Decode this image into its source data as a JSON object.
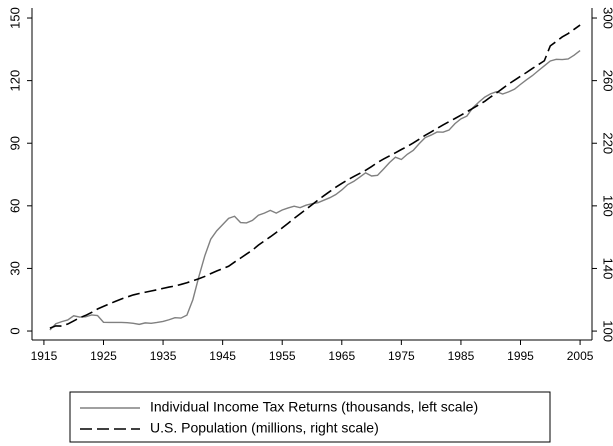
{
  "chart_data": {
    "type": "line",
    "x": [
      1916,
      1917,
      1918,
      1919,
      1920,
      1921,
      1922,
      1923,
      1924,
      1925,
      1926,
      1927,
      1928,
      1929,
      1930,
      1931,
      1932,
      1933,
      1934,
      1935,
      1936,
      1937,
      1938,
      1939,
      1940,
      1941,
      1942,
      1943,
      1944,
      1945,
      1946,
      1947,
      1948,
      1949,
      1950,
      1951,
      1952,
      1953,
      1954,
      1955,
      1956,
      1957,
      1958,
      1959,
      1960,
      1961,
      1962,
      1963,
      1964,
      1965,
      1966,
      1967,
      1968,
      1969,
      1970,
      1971,
      1972,
      1973,
      1974,
      1975,
      1976,
      1977,
      1978,
      1979,
      1980,
      1981,
      1982,
      1983,
      1984,
      1985,
      1986,
      1987,
      1988,
      1989,
      1990,
      1991,
      1992,
      1993,
      1994,
      1995,
      1996,
      1997,
      1998,
      1999,
      2000,
      2001,
      2002,
      2003,
      2004,
      2005
    ],
    "series": [
      {
        "name": "Individual Income Tax Returns (thousands, left scale)",
        "color": "#808080",
        "dash": "solid",
        "axis": "y",
        "values": [
          0.5,
          3.5,
          4.5,
          5.3,
          7.3,
          6.7,
          6.8,
          7.7,
          7.4,
          4.2,
          4.1,
          4.1,
          4.1,
          4.0,
          3.7,
          3.2,
          3.9,
          3.7,
          4.1,
          4.6,
          5.4,
          6.4,
          6.2,
          7.6,
          15,
          26,
          36,
          44,
          48,
          51,
          54,
          55,
          52,
          51.8,
          53,
          55.5,
          56.5,
          57.8,
          56.5,
          58,
          59,
          59.8,
          59.1,
          60.3,
          61,
          61.5,
          62.7,
          63.9,
          65.4,
          67.6,
          70.2,
          71.7,
          73.7,
          75.8,
          74.3,
          74.6,
          77.6,
          80.7,
          83.3,
          82.2,
          84.7,
          86.6,
          89.8,
          92.7,
          93.9,
          95.4,
          95.3,
          96.3,
          99.4,
          101.7,
          103,
          107,
          109.7,
          112.1,
          113.7,
          114.7,
          113.6,
          114.6,
          115.9,
          118.2,
          120.4,
          122.4,
          124.8,
          127.1,
          129.4,
          130.2,
          130.1,
          130.4,
          132.2,
          134.4
        ]
      },
      {
        "name": "U.S. Population (millions, right scale)",
        "color": "#000000",
        "dash": "dashed",
        "axis": "y2",
        "values": [
          101.9,
          103.3,
          103.2,
          104.5,
          106.5,
          108.5,
          110,
          111.9,
          114.1,
          115.8,
          117.4,
          119,
          120.5,
          121.8,
          123.1,
          124,
          124.8,
          125.6,
          126.4,
          127.3,
          128.1,
          128.8,
          129.8,
          130.9,
          132.1,
          133.4,
          134.9,
          136.7,
          138.4,
          139.9,
          141.4,
          144.1,
          146.6,
          149.2,
          151.7,
          154.9,
          157.6,
          160.2,
          163,
          165.9,
          168.9,
          172,
          174.9,
          177.8,
          180.7,
          183.7,
          186.5,
          189.2,
          191.9,
          194.3,
          196.6,
          198.7,
          200.7,
          202.7,
          205.1,
          207.7,
          209.9,
          211.9,
          213.9,
          216,
          218,
          220.2,
          222.6,
          225.1,
          227.2,
          229.5,
          231.7,
          233.8,
          235.8,
          237.9,
          240.1,
          242.3,
          244.5,
          246.8,
          249.6,
          252.2,
          255,
          257.8,
          260.3,
          262.8,
          265.2,
          267.8,
          270.2,
          272.7,
          282.2,
          285,
          287.9,
          290.1,
          292.8,
          295.5
        ]
      }
    ],
    "xlim": [
      1913,
      2007
    ],
    "xticks": [
      1915,
      1925,
      1935,
      1945,
      1955,
      1965,
      1975,
      1985,
      1995,
      2005
    ],
    "ylim": [
      -4.3,
      154.8
    ],
    "yticks": [
      0,
      30,
      60,
      90,
      120,
      150
    ],
    "y2lim": [
      94.3,
      306.4
    ],
    "y2ticks": [
      100,
      140,
      180,
      220,
      260,
      300
    ],
    "grid": false,
    "legend": "bottom"
  }
}
